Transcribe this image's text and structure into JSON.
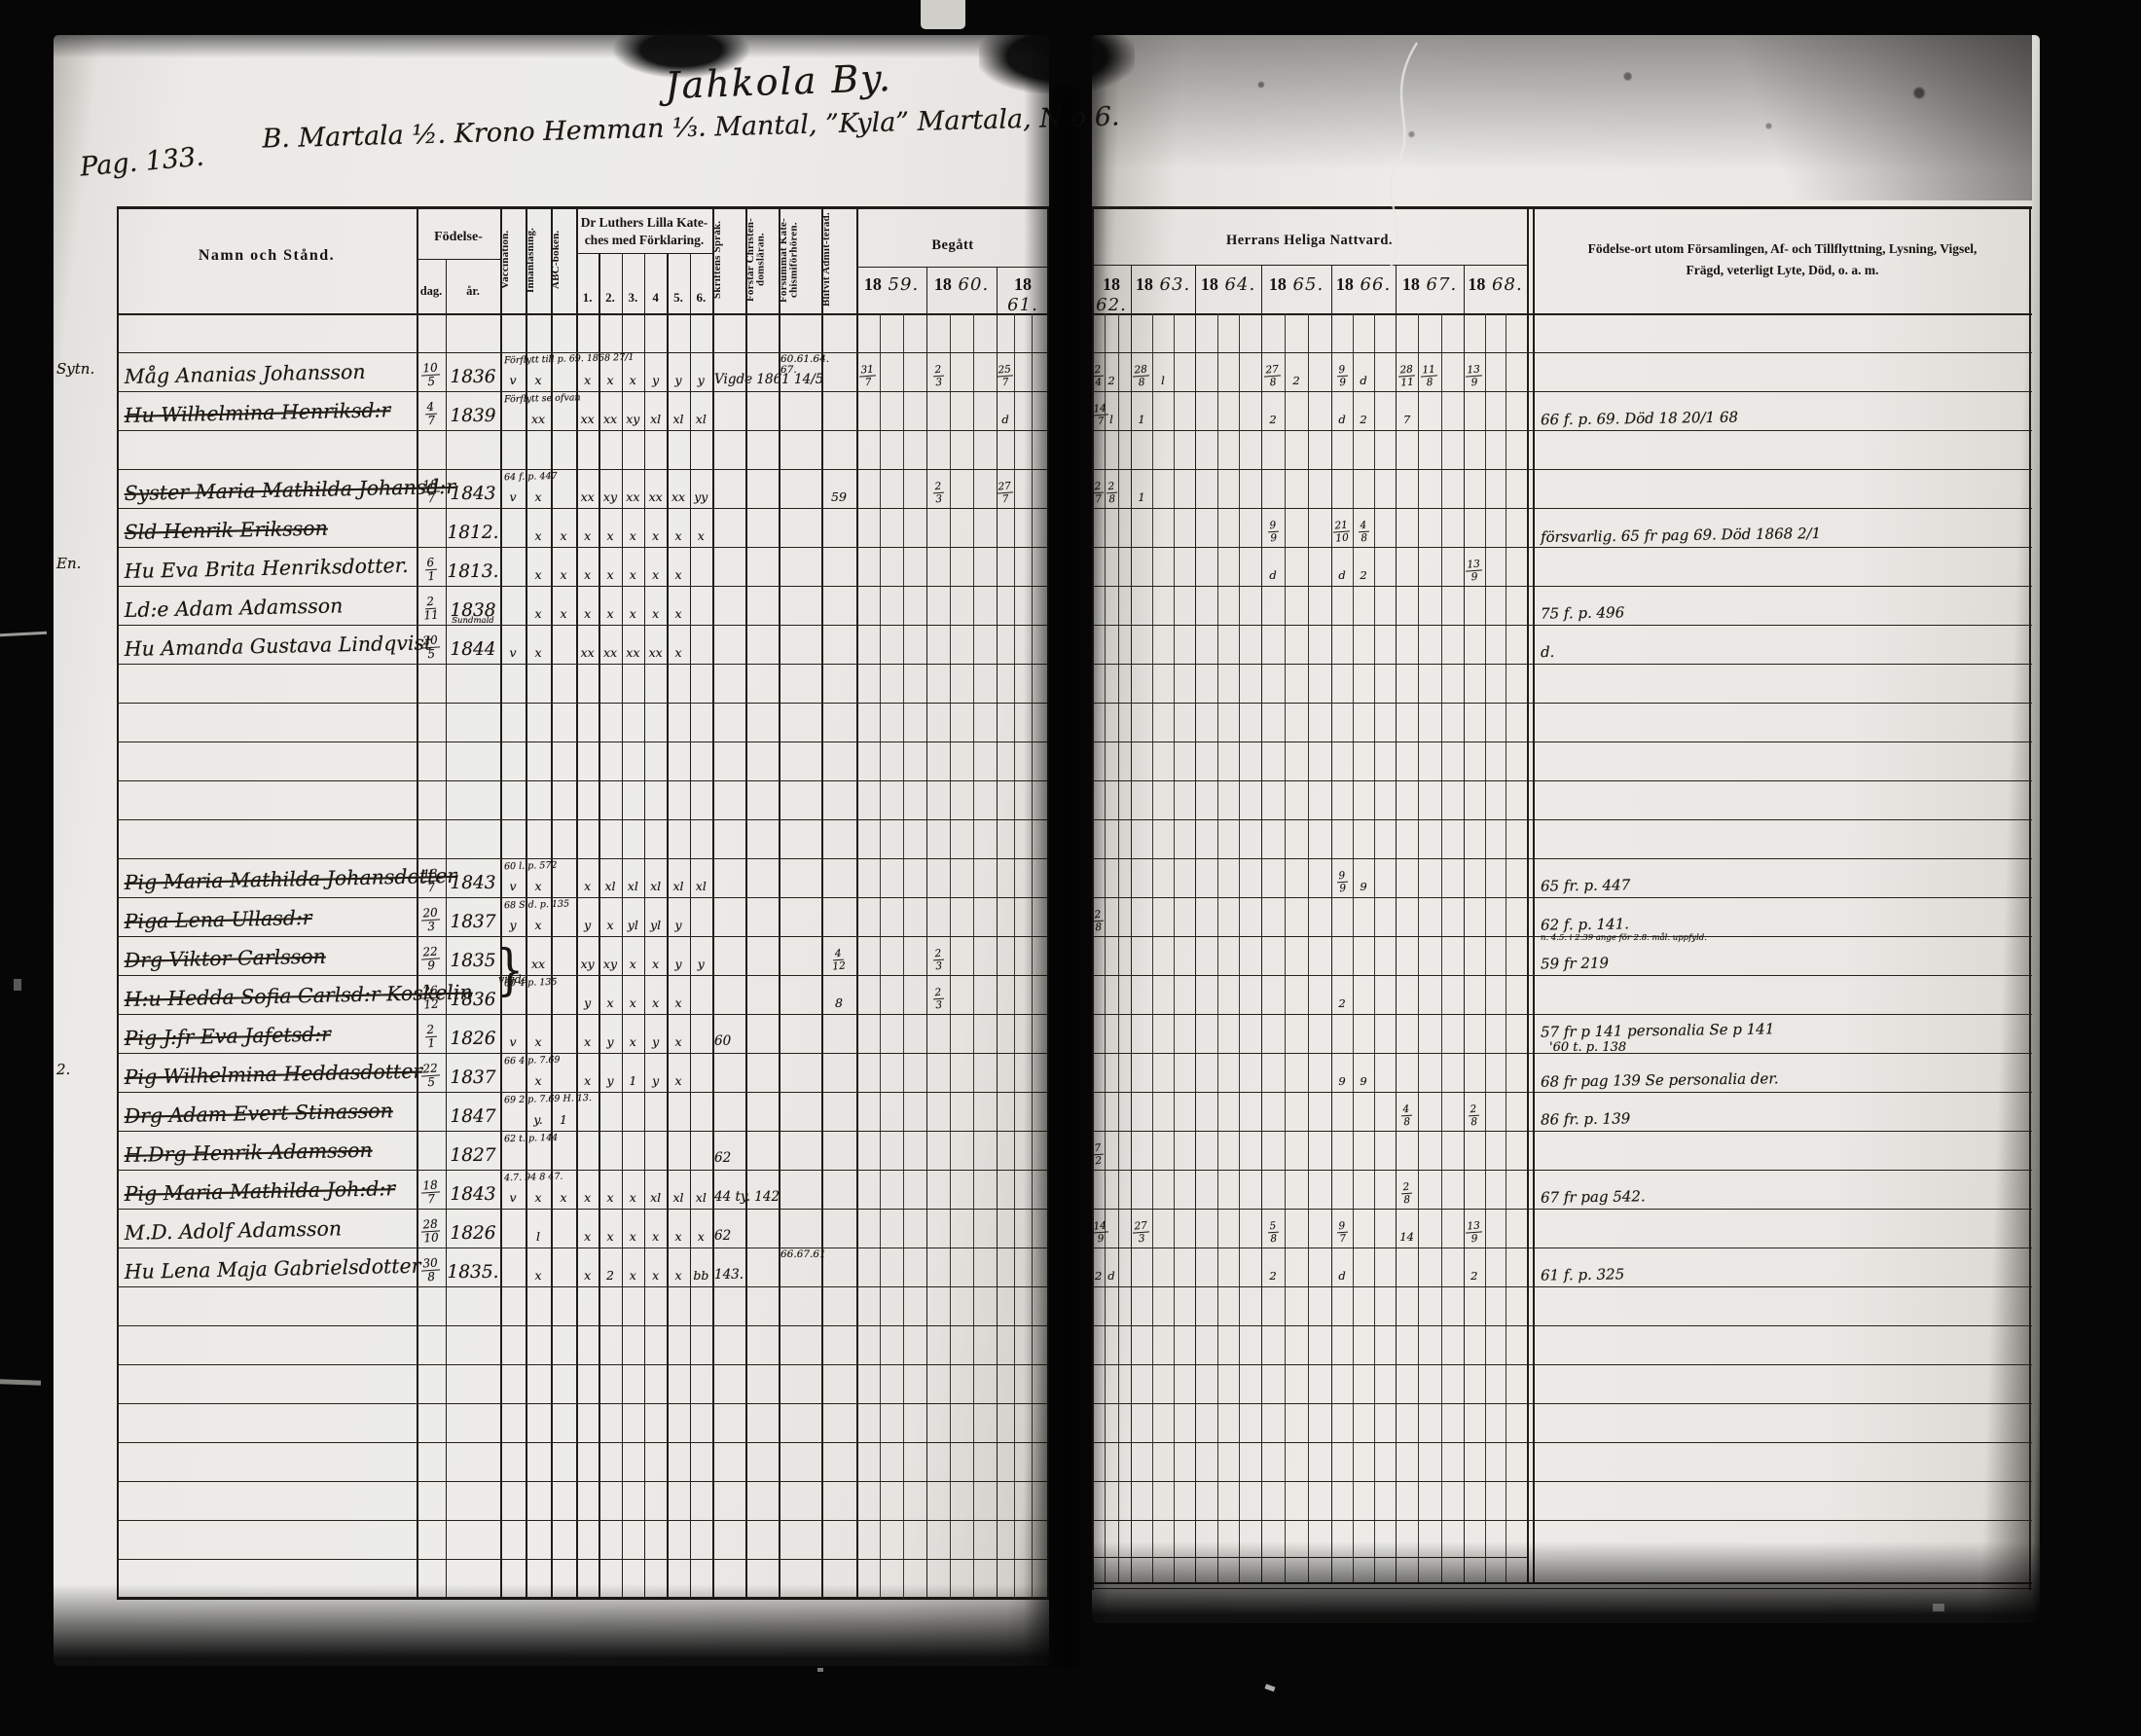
{
  "page": {
    "title": "Jahkola By.",
    "subtitle": "B. Martala ½. Krono Hemman ⅓. Mantal, ”Kyla” Martala, N:o 6.",
    "page_number": "Pag. 133."
  },
  "table": {
    "headers": {
      "namn": "Namn och Stånd.",
      "fodelse": "Födelse-",
      "dag": "dag.",
      "ar": "år.",
      "vacc": "Vaccination.",
      "innan": "Innanläsning.",
      "abc": "ABC-boken.",
      "katekes_line1": "Dr Luthers Lilla Kate-",
      "katekes_line2": "ches med Förklaring.",
      "katekes_sub": [
        "1.",
        "2.",
        "3.",
        "4",
        "5.",
        "6."
      ],
      "skrift": "Skriftens Språk.",
      "forstar": "Förstår Christen-domsläran.",
      "forsummat": "Försummat Kate-chismiförhören.",
      "blifvit": "Blifvit Admit-terad.",
      "begatt": "Begått",
      "nattvard": "Herrans Heliga Nattvard.",
      "years_left": [
        "1859.",
        "1860.",
        "1861."
      ],
      "years_right": [
        "1862.",
        "1863.",
        "1864.",
        "1865.",
        "1866.",
        "1867.",
        "1868."
      ],
      "remarks_l1": "Födelse-ort utom Församlingen, Af- och Tillflyttning, Lysning, Vigsel,",
      "remarks_l2": "Frägd, veterligt Lyte, Död, o. a. m."
    },
    "rows": [
      {},
      {
        "margin": "Sytn.",
        "name": "Måg Ananias Johansson",
        "dag": "10/5",
        "ar": "1836",
        "vacc": "v",
        "innan": "x",
        "kat": [
          "x",
          "x",
          "x",
          "y",
          "y",
          "y"
        ],
        "kat_note": "Förflytt till p. 69. 1868 27/1",
        "skrift": "Vigde 1861 14/5",
        "forsummat": "60.61.64. 67.",
        "y1859": "31/7",
        "y1860": "2/3",
        "y1861": "25/7",
        "y1862": "2/4 2",
        "y1863": "28/8 l",
        "y1865": "27/8 2",
        "y1866": "9/9 d",
        "y1867": "28/11 11/8",
        "y1868": "13/9"
      },
      {
        "name": "Hu Wilhelmina Henriksd:r",
        "struck": true,
        "dag": "4/7",
        "ar": "1839",
        "innan": "xx",
        "kat": [
          "xx",
          "xx",
          "xy",
          "xl",
          "xl",
          "xl"
        ],
        "kat_note": "Förflytt se ofvan",
        "y1861": "d",
        "y1862": "14/7 l",
        "y1863": "1",
        "y1865": "2",
        "y1866": "d 2",
        "y1867": "7",
        "remark": "66 f. p. 69.  Död 18 20/1 68"
      },
      {},
      {
        "name": "Syster Maria Mathilda Johansd:r",
        "struck": true,
        "dag": "18/7",
        "ar": "1843",
        "vacc": "v",
        "innan": "x",
        "kat": [
          "xx",
          "xy",
          "xx",
          "xx",
          "xx",
          "yy"
        ],
        "kat_note": "64 f. p. 447",
        "blifvit": "59",
        "y1860": "2/3",
        "y1861": "27/7",
        "y1862": "2/7 2/8",
        "y1863": "1"
      },
      {
        "name": "Sld Henrik Eriksson",
        "struck": true,
        "ar": "1812.",
        "innan": "x",
        "abc": "x",
        "kat": [
          "x",
          "x",
          "x",
          "x",
          "x",
          "x"
        ],
        "y1865": "9/9",
        "y1866": "21/10 4/8",
        "remark": "försvarlig. 65 fr pag 69.  Död 1868 2/1"
      },
      {
        "margin": "En.",
        "name": "Hu Eva Brita Henriksdotter.",
        "dag": "6/1",
        "ar": "1813.",
        "innan": "x",
        "abc": "x",
        "kat": [
          "x",
          "x",
          "x",
          "x",
          "x",
          ""
        ],
        "y1865": "d",
        "y1866": "d 2",
        "y1868": "13/9"
      },
      {
        "name": "Ld:e Adam Adamsson",
        "dag": "2/11",
        "ar": "1838",
        "innan": "x",
        "abc": "x",
        "kat": [
          "x",
          "x",
          "x",
          "x",
          "x",
          ""
        ],
        "remark": "75 f. p. 496"
      },
      {
        "name": "Hu Amanda Gustava Lindqvist",
        "dag": "20/5",
        "ar": "1844",
        "ar_note": "Sundmald",
        "vacc": "v",
        "innan": "x",
        "kat": [
          "xx",
          "xx",
          "xx",
          "xx",
          "x",
          ""
        ],
        "remark": "d."
      },
      {},
      {},
      {},
      {},
      {},
      {
        "name": "Pig Maria Mathilda Johansdotter",
        "struck": true,
        "dag": "13/7",
        "ar": "1843",
        "vacc": "v",
        "innan": "x",
        "kat_note": "60 l. p. 572",
        "kat": [
          "x",
          "xl",
          "xl",
          "xl",
          "xl",
          "xl"
        ],
        "y1866": "9/9 9",
        "remark": "65 fr. p. 447"
      },
      {
        "name": "Piga Lena Ullasd:r",
        "struck": true,
        "dag": "20/3",
        "ar": "1837",
        "vacc": "y",
        "innan": "x",
        "kat_note": "68 Sid. p. 135",
        "kat": [
          "y",
          "x",
          "yl",
          "yl",
          "y",
          ""
        ],
        "y1862": "2/8",
        "remark": "62 f. p. 141.",
        "remark_small": "n. 4.5. i 2.39 ange för 2.8. mål. uppfyld."
      },
      {
        "name": "Drg Viktor Carlsson",
        "struck": true,
        "dag": "22/9",
        "ar": "1835",
        "innan": "xx",
        "kat": [
          "xy",
          "xy",
          "x",
          "x",
          "y",
          "y"
        ],
        "blifvit": "4/12",
        "y1860": "2/3",
        "brace": true,
        "remark": "59 fr 219"
      },
      {
        "name": "H:u Hedda Sofia Carlsd:r Koskelin",
        "struck": true,
        "dag": "26/12",
        "ar": "1836",
        "vacc_note": "vigde",
        "kat_note": "60 4 p. 135",
        "kat": [
          "y",
          "x",
          "x",
          "x",
          "x",
          ""
        ],
        "blifvit": "8",
        "y1860": "2/3",
        "y1866": "2"
      },
      {
        "name": "Pig J:fr Eva Jafetsd:r",
        "struck": true,
        "dag": "2/1",
        "ar": "1826",
        "vacc": "v",
        "innan": "x",
        "kat": [
          "x",
          "y",
          "x",
          "y",
          "x",
          ""
        ],
        "skrift": "60",
        "remark": "57 fr p 141 personalia Se p 141",
        "remark2": "'60 t. p. 138"
      },
      {
        "margin": "2.",
        "name": "Pig Wilhelmina Heddasdotter",
        "struck": true,
        "dag": "22/5",
        "ar": "1837",
        "innan": "x",
        "kat_note": "66 4 p. 7.69",
        "kat": [
          "x",
          "y",
          "1",
          "y",
          "x",
          ""
        ],
        "y1866": "9 9",
        "remark": "68 fr pag 139 Se personalia der."
      },
      {
        "name": "Drg Adam Evert Stinasson",
        "struck": true,
        "ar": "1847",
        "innan": "y.",
        "abc": "1",
        "kat_note": "69 2 p. 7.69  H. 13.",
        "y1867": "4/8",
        "y1868": "2/8",
        "remark": "86 fr. p. 139"
      },
      {
        "name": "H.Drg Henrik Adamsson",
        "struck": true,
        "ar": "1827",
        "kat_note": "62 t. p. 144",
        "skrift": "62",
        "y1862": "7/2"
      },
      {
        "name": "Pig Maria Mathilda Joh:d:r",
        "struck": true,
        "dag": "18/7",
        "ar": "1843",
        "vacc": "v",
        "innan": "x",
        "abc": "x",
        "kat_note": "4.7. 94 8 47.",
        "kat": [
          "x",
          "x",
          "x",
          "xl",
          "xl",
          "xl"
        ],
        "skrift": "44 ty. 142",
        "y1867": "2/8",
        "remark": "67 fr pag 542."
      },
      {
        "name": "M.D. Adolf Adamsson",
        "dag": "28/10",
        "ar": "1826",
        "innan": "l",
        "kat": [
          "x",
          "x",
          "x",
          "x",
          "x",
          "x"
        ],
        "skrift": "62",
        "y1862": "14/9",
        "y1863": "27/3",
        "y1865": "5/8",
        "y1866": "9/7",
        "y1867": "14",
        "y1868": "13/9"
      },
      {
        "name": "Hu Lena Maja Gabrielsdotter",
        "dag": "30/8",
        "ar": "1835.",
        "innan": "x",
        "kat": [
          "x",
          "2",
          "x",
          "x",
          "x",
          "bb"
        ],
        "skrift": "143.",
        "forsummat": "66.67.61",
        "y1862": "2 d",
        "y1865": "2",
        "y1866": "d",
        "y1868": "2",
        "remark": "61 f. p. 325"
      },
      {},
      {},
      {},
      {},
      {},
      {},
      {},
      {}
    ]
  }
}
